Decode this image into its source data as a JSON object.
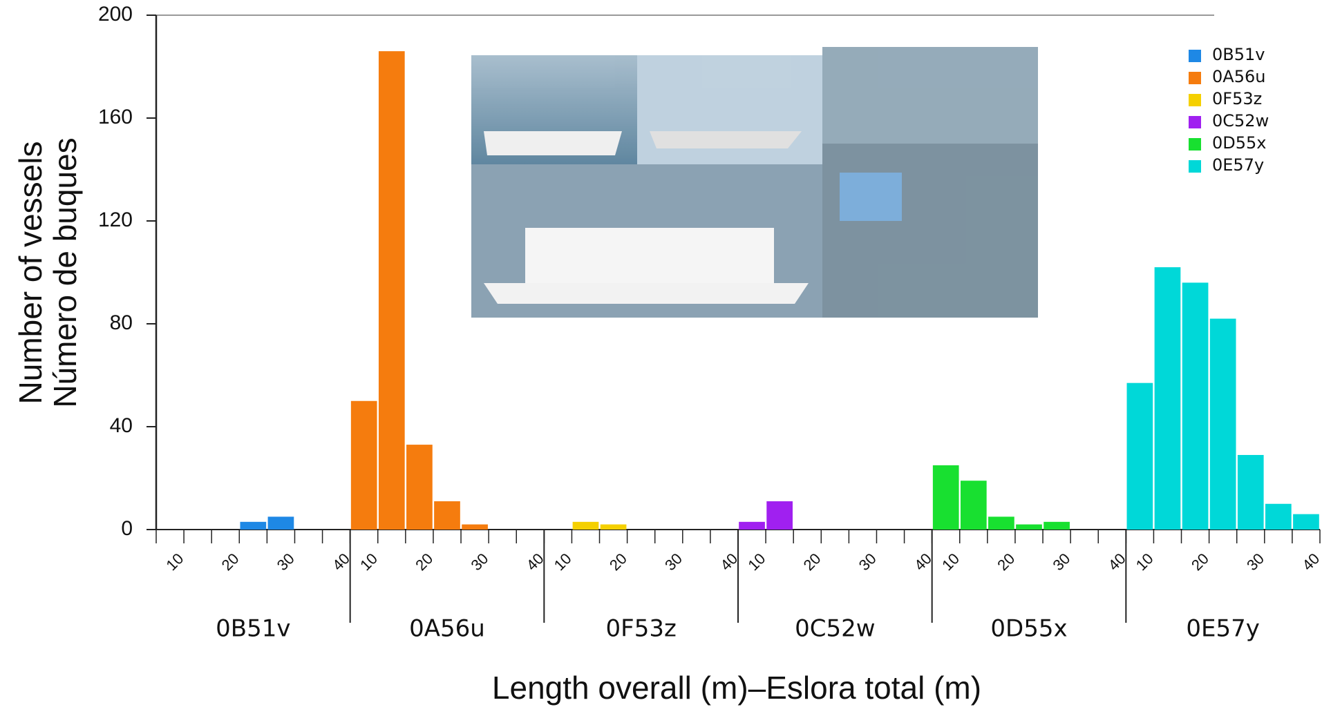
{
  "chart_data": {
    "type": "histogram",
    "ylabel": [
      "Number of vessels",
      "Número de buques"
    ],
    "xlabel": "Length overall (m)–Eslora total (m)",
    "ylim": [
      0,
      200
    ],
    "yticks": [
      0,
      40,
      80,
      120,
      160,
      200
    ],
    "xlim": [
      5,
      40
    ],
    "xticks": [
      10,
      20,
      30,
      40
    ],
    "legend": "upper right",
    "series": [
      {
        "name": "0B51v",
        "color": "#1e88e5",
        "bins": [
          5,
          10,
          15,
          20,
          25,
          30,
          35,
          40
        ],
        "values": [
          0,
          0,
          0,
          3,
          5,
          0,
          0
        ]
      },
      {
        "name": "0A56u",
        "color": "#f57c0e",
        "bins": [
          5,
          10,
          15,
          20,
          25,
          30,
          35,
          40
        ],
        "values": [
          50,
          186,
          33,
          11,
          2,
          0,
          0
        ]
      },
      {
        "name": "0F53z",
        "color": "#f5d000",
        "bins": [
          5,
          10,
          15,
          20,
          25,
          30,
          35,
          40
        ],
        "values": [
          0,
          3,
          2,
          0,
          0,
          0,
          0
        ]
      },
      {
        "name": "0C52w",
        "color": "#a020f0",
        "bins": [
          5,
          10,
          15,
          20,
          25,
          30,
          35,
          40
        ],
        "values": [
          3,
          11,
          0,
          0,
          0,
          0,
          0
        ]
      },
      {
        "name": "0D55x",
        "color": "#18e030",
        "bins": [
          5,
          10,
          15,
          20,
          25,
          30,
          35,
          40
        ],
        "values": [
          25,
          19,
          5,
          2,
          3,
          0,
          0
        ]
      },
      {
        "name": "0E57y",
        "color": "#00d8d8",
        "bins": [
          5,
          10,
          15,
          20,
          25,
          30,
          35,
          40
        ],
        "values": [
          57,
          102,
          96,
          82,
          29,
          10,
          6
        ]
      }
    ]
  }
}
